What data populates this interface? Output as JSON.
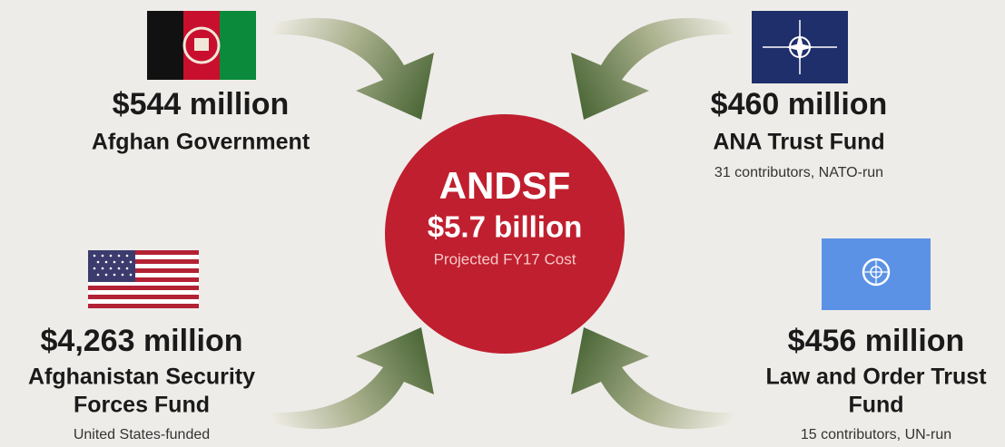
{
  "center": {
    "title": "ANDSF",
    "amount": "$5.7 billion",
    "caption": "Projected FY17 Cost"
  },
  "sources": [
    {
      "amount": "$544 million",
      "name": [
        "Afghan Government"
      ]
    },
    {
      "amount": "$460 million",
      "name": [
        "ANA Trust Fund"
      ],
      "note": "31 contributors, NATO-run"
    },
    {
      "amount": "$4,263 million",
      "name": [
        "Afghanistan Security",
        "Forces Fund"
      ],
      "note": "United States-funded"
    },
    {
      "amount": "$456 million",
      "name": [
        "Law and Order Trust",
        "Fund"
      ],
      "note": "15 contributors, UN-run"
    }
  ]
}
